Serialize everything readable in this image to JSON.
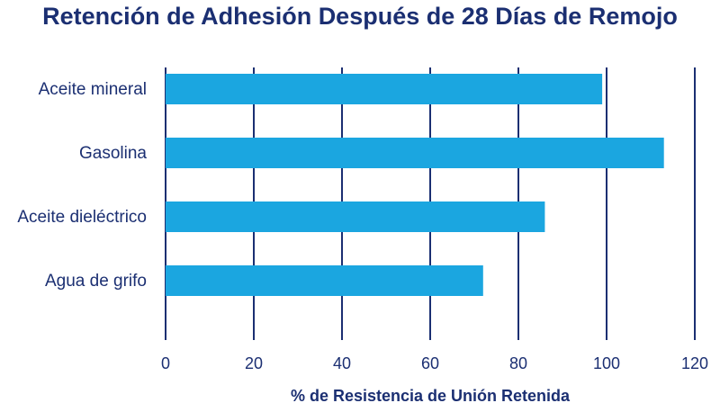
{
  "chart_data": {
    "type": "bar",
    "orientation": "horizontal",
    "title": "Retención de Adhesión Después de 28 Días de Remojo",
    "xlabel": "% de Resistencia de Unión Retenida",
    "ylabel": "",
    "categories": [
      "Aceite mineral",
      "Gasolina",
      "Aceite dieléctrico",
      "Agua de grifo"
    ],
    "values": [
      99,
      113,
      86,
      72
    ],
    "xlim": [
      0,
      120
    ],
    "ticks": [
      "0",
      "20",
      "40",
      "60",
      "80",
      "100",
      "120"
    ],
    "grid": true,
    "legend": "none"
  },
  "colors": {
    "bar": "#1ba6e0",
    "grid": "#1b2f72",
    "text": "#1b2f72"
  }
}
